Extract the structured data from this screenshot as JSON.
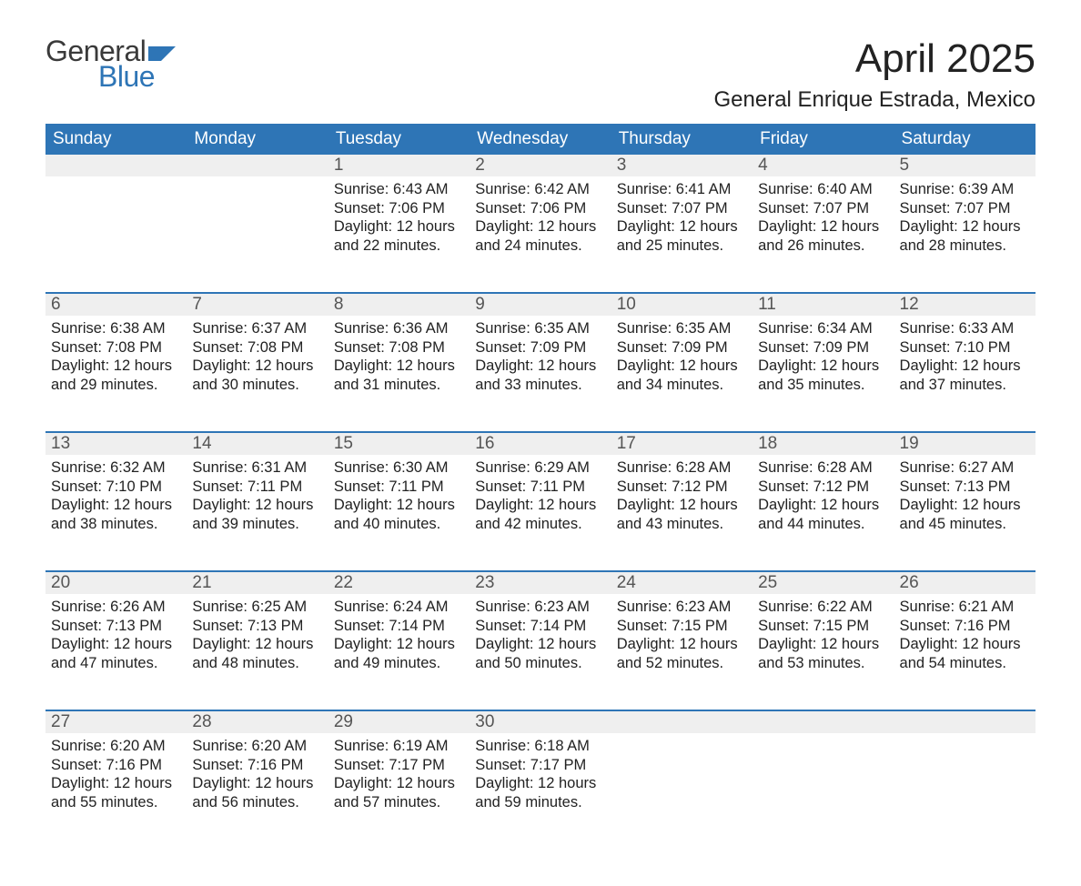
{
  "brand": {
    "top": "General",
    "bottom": "Blue",
    "flag_color": "#2e75b6"
  },
  "title": "April 2025",
  "location": "General Enrique Estrada, Mexico",
  "colors": {
    "header_bg": "#2e75b6",
    "header_fg": "#ffffff",
    "daynum_bg": "#efefef",
    "daynum_fg": "#555555",
    "text": "#222222",
    "rule": "#2e75b6"
  },
  "weekdays": [
    "Sunday",
    "Monday",
    "Tuesday",
    "Wednesday",
    "Thursday",
    "Friday",
    "Saturday"
  ],
  "weeks": [
    [
      null,
      null,
      {
        "n": "1",
        "sr": "Sunrise: 6:43 AM",
        "ss": "Sunset: 7:06 PM",
        "d1": "Daylight: 12 hours",
        "d2": "and 22 minutes."
      },
      {
        "n": "2",
        "sr": "Sunrise: 6:42 AM",
        "ss": "Sunset: 7:06 PM",
        "d1": "Daylight: 12 hours",
        "d2": "and 24 minutes."
      },
      {
        "n": "3",
        "sr": "Sunrise: 6:41 AM",
        "ss": "Sunset: 7:07 PM",
        "d1": "Daylight: 12 hours",
        "d2": "and 25 minutes."
      },
      {
        "n": "4",
        "sr": "Sunrise: 6:40 AM",
        "ss": "Sunset: 7:07 PM",
        "d1": "Daylight: 12 hours",
        "d2": "and 26 minutes."
      },
      {
        "n": "5",
        "sr": "Sunrise: 6:39 AM",
        "ss": "Sunset: 7:07 PM",
        "d1": "Daylight: 12 hours",
        "d2": "and 28 minutes."
      }
    ],
    [
      {
        "n": "6",
        "sr": "Sunrise: 6:38 AM",
        "ss": "Sunset: 7:08 PM",
        "d1": "Daylight: 12 hours",
        "d2": "and 29 minutes."
      },
      {
        "n": "7",
        "sr": "Sunrise: 6:37 AM",
        "ss": "Sunset: 7:08 PM",
        "d1": "Daylight: 12 hours",
        "d2": "and 30 minutes."
      },
      {
        "n": "8",
        "sr": "Sunrise: 6:36 AM",
        "ss": "Sunset: 7:08 PM",
        "d1": "Daylight: 12 hours",
        "d2": "and 31 minutes."
      },
      {
        "n": "9",
        "sr": "Sunrise: 6:35 AM",
        "ss": "Sunset: 7:09 PM",
        "d1": "Daylight: 12 hours",
        "d2": "and 33 minutes."
      },
      {
        "n": "10",
        "sr": "Sunrise: 6:35 AM",
        "ss": "Sunset: 7:09 PM",
        "d1": "Daylight: 12 hours",
        "d2": "and 34 minutes."
      },
      {
        "n": "11",
        "sr": "Sunrise: 6:34 AM",
        "ss": "Sunset: 7:09 PM",
        "d1": "Daylight: 12 hours",
        "d2": "and 35 minutes."
      },
      {
        "n": "12",
        "sr": "Sunrise: 6:33 AM",
        "ss": "Sunset: 7:10 PM",
        "d1": "Daylight: 12 hours",
        "d2": "and 37 minutes."
      }
    ],
    [
      {
        "n": "13",
        "sr": "Sunrise: 6:32 AM",
        "ss": "Sunset: 7:10 PM",
        "d1": "Daylight: 12 hours",
        "d2": "and 38 minutes."
      },
      {
        "n": "14",
        "sr": "Sunrise: 6:31 AM",
        "ss": "Sunset: 7:11 PM",
        "d1": "Daylight: 12 hours",
        "d2": "and 39 minutes."
      },
      {
        "n": "15",
        "sr": "Sunrise: 6:30 AM",
        "ss": "Sunset: 7:11 PM",
        "d1": "Daylight: 12 hours",
        "d2": "and 40 minutes."
      },
      {
        "n": "16",
        "sr": "Sunrise: 6:29 AM",
        "ss": "Sunset: 7:11 PM",
        "d1": "Daylight: 12 hours",
        "d2": "and 42 minutes."
      },
      {
        "n": "17",
        "sr": "Sunrise: 6:28 AM",
        "ss": "Sunset: 7:12 PM",
        "d1": "Daylight: 12 hours",
        "d2": "and 43 minutes."
      },
      {
        "n": "18",
        "sr": "Sunrise: 6:28 AM",
        "ss": "Sunset: 7:12 PM",
        "d1": "Daylight: 12 hours",
        "d2": "and 44 minutes."
      },
      {
        "n": "19",
        "sr": "Sunrise: 6:27 AM",
        "ss": "Sunset: 7:13 PM",
        "d1": "Daylight: 12 hours",
        "d2": "and 45 minutes."
      }
    ],
    [
      {
        "n": "20",
        "sr": "Sunrise: 6:26 AM",
        "ss": "Sunset: 7:13 PM",
        "d1": "Daylight: 12 hours",
        "d2": "and 47 minutes."
      },
      {
        "n": "21",
        "sr": "Sunrise: 6:25 AM",
        "ss": "Sunset: 7:13 PM",
        "d1": "Daylight: 12 hours",
        "d2": "and 48 minutes."
      },
      {
        "n": "22",
        "sr": "Sunrise: 6:24 AM",
        "ss": "Sunset: 7:14 PM",
        "d1": "Daylight: 12 hours",
        "d2": "and 49 minutes."
      },
      {
        "n": "23",
        "sr": "Sunrise: 6:23 AM",
        "ss": "Sunset: 7:14 PM",
        "d1": "Daylight: 12 hours",
        "d2": "and 50 minutes."
      },
      {
        "n": "24",
        "sr": "Sunrise: 6:23 AM",
        "ss": "Sunset: 7:15 PM",
        "d1": "Daylight: 12 hours",
        "d2": "and 52 minutes."
      },
      {
        "n": "25",
        "sr": "Sunrise: 6:22 AM",
        "ss": "Sunset: 7:15 PM",
        "d1": "Daylight: 12 hours",
        "d2": "and 53 minutes."
      },
      {
        "n": "26",
        "sr": "Sunrise: 6:21 AM",
        "ss": "Sunset: 7:16 PM",
        "d1": "Daylight: 12 hours",
        "d2": "and 54 minutes."
      }
    ],
    [
      {
        "n": "27",
        "sr": "Sunrise: 6:20 AM",
        "ss": "Sunset: 7:16 PM",
        "d1": "Daylight: 12 hours",
        "d2": "and 55 minutes."
      },
      {
        "n": "28",
        "sr": "Sunrise: 6:20 AM",
        "ss": "Sunset: 7:16 PM",
        "d1": "Daylight: 12 hours",
        "d2": "and 56 minutes."
      },
      {
        "n": "29",
        "sr": "Sunrise: 6:19 AM",
        "ss": "Sunset: 7:17 PM",
        "d1": "Daylight: 12 hours",
        "d2": "and 57 minutes."
      },
      {
        "n": "30",
        "sr": "Sunrise: 6:18 AM",
        "ss": "Sunset: 7:17 PM",
        "d1": "Daylight: 12 hours",
        "d2": "and 59 minutes."
      },
      null,
      null,
      null
    ]
  ]
}
